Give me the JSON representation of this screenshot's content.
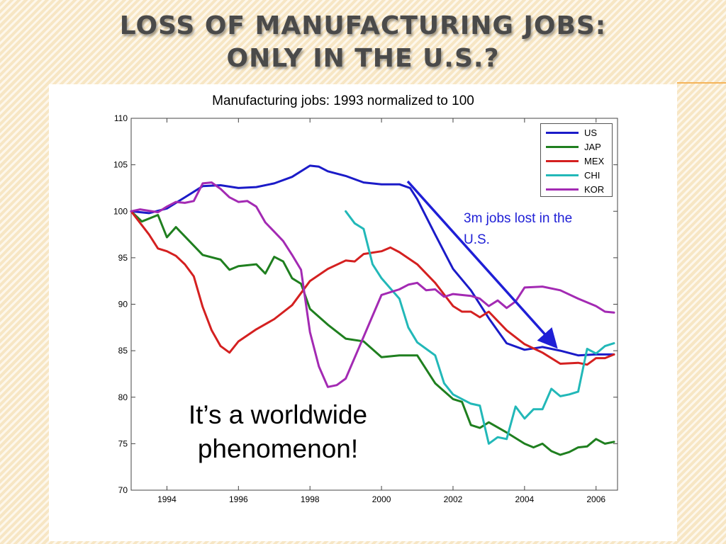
{
  "slide": {
    "title_line1": "LOSS OF MANUFACTURING JOBS:",
    "title_line2": "ONLY IN THE U.S.?",
    "callout": "3m jobs lost in the U.S.",
    "note": "It’s a worldwide phenomenon!"
  },
  "colors": {
    "US": "#1b1bc8",
    "JAP": "#1f7f1f",
    "MEX": "#d42020",
    "CHI": "#22b8b8",
    "KOR": "#a32ab3",
    "arrow": "#1f1fd6"
  },
  "chart_data": {
    "type": "line",
    "title": "Manufacturing jobs: 1993 normalized to 100",
    "xlabel": "",
    "ylabel": "",
    "xlim": [
      1993,
      2006.6
    ],
    "ylim": [
      70,
      110
    ],
    "xticks": [
      1994,
      1996,
      1998,
      2000,
      2002,
      2004,
      2006
    ],
    "yticks": [
      70,
      75,
      80,
      85,
      90,
      95,
      100,
      105,
      110
    ],
    "legend_position": "top-right",
    "grid": false,
    "series": [
      {
        "name": "US",
        "points": [
          [
            1993,
            100
          ],
          [
            1993.5,
            99.8
          ],
          [
            1994,
            100.3
          ],
          [
            1994.5,
            101.5
          ],
          [
            1995,
            102.7
          ],
          [
            1995.5,
            102.8
          ],
          [
            1996,
            102.5
          ],
          [
            1996.5,
            102.6
          ],
          [
            1997,
            103
          ],
          [
            1997.5,
            103.7
          ],
          [
            1998,
            104.9
          ],
          [
            1998.25,
            104.8
          ],
          [
            1998.5,
            104.3
          ],
          [
            1999,
            103.8
          ],
          [
            1999.5,
            103.1
          ],
          [
            2000,
            102.9
          ],
          [
            2000.5,
            102.9
          ],
          [
            2000.8,
            102.5
          ],
          [
            2001,
            101.3
          ],
          [
            2001.5,
            97.5
          ],
          [
            2002,
            93.8
          ],
          [
            2002.5,
            91.5
          ],
          [
            2003,
            88.5
          ],
          [
            2003.5,
            85.8
          ],
          [
            2004,
            85.1
          ],
          [
            2004.5,
            85.4
          ],
          [
            2005,
            85
          ],
          [
            2005.5,
            84.5
          ],
          [
            2006,
            84.6
          ],
          [
            2006.5,
            84.6
          ]
        ]
      },
      {
        "name": "JAP",
        "points": [
          [
            1993,
            100
          ],
          [
            1993.3,
            98.9
          ],
          [
            1993.75,
            99.6
          ],
          [
            1994,
            97.2
          ],
          [
            1994.25,
            98.3
          ],
          [
            1994.5,
            97.3
          ],
          [
            1995,
            95.3
          ],
          [
            1995.5,
            94.8
          ],
          [
            1995.75,
            93.7
          ],
          [
            1996,
            94.1
          ],
          [
            1996.5,
            94.3
          ],
          [
            1996.75,
            93.3
          ],
          [
            1997,
            95.1
          ],
          [
            1997.25,
            94.6
          ],
          [
            1997.5,
            92.8
          ],
          [
            1997.75,
            92.2
          ],
          [
            1998,
            89.5
          ],
          [
            1998.5,
            87.8
          ],
          [
            1999,
            86.3
          ],
          [
            1999.5,
            86
          ],
          [
            2000,
            84.3
          ],
          [
            2000.5,
            84.5
          ],
          [
            2001,
            84.5
          ],
          [
            2001.5,
            81.5
          ],
          [
            2002,
            79.8
          ],
          [
            2002.25,
            79.5
          ],
          [
            2002.5,
            77
          ],
          [
            2002.75,
            76.7
          ],
          [
            2003,
            77.3
          ],
          [
            2003.5,
            76.2
          ],
          [
            2004,
            75
          ],
          [
            2004.25,
            74.6
          ],
          [
            2004.5,
            75
          ],
          [
            2004.75,
            74.2
          ],
          [
            2005,
            73.8
          ],
          [
            2005.25,
            74.1
          ],
          [
            2005.5,
            74.6
          ],
          [
            2005.75,
            74.7
          ],
          [
            2006,
            75.5
          ],
          [
            2006.25,
            75
          ],
          [
            2006.5,
            75.2
          ]
        ]
      },
      {
        "name": "MEX",
        "points": [
          [
            1993,
            100
          ],
          [
            1993.5,
            97.5
          ],
          [
            1993.75,
            96
          ],
          [
            1994,
            95.7
          ],
          [
            1994.25,
            95.2
          ],
          [
            1994.5,
            94.3
          ],
          [
            1994.75,
            93
          ],
          [
            1995,
            89.7
          ],
          [
            1995.25,
            87.2
          ],
          [
            1995.5,
            85.5
          ],
          [
            1995.75,
            84.8
          ],
          [
            1996,
            86
          ],
          [
            1996.5,
            87.3
          ],
          [
            1997,
            88.4
          ],
          [
            1997.5,
            89.9
          ],
          [
            1998,
            92.5
          ],
          [
            1998.5,
            93.8
          ],
          [
            1999,
            94.7
          ],
          [
            1999.25,
            94.6
          ],
          [
            1999.5,
            95.4
          ],
          [
            2000,
            95.7
          ],
          [
            2000.25,
            96.1
          ],
          [
            2000.5,
            95.6
          ],
          [
            2001,
            94.3
          ],
          [
            2001.5,
            92.3
          ],
          [
            2002,
            89.8
          ],
          [
            2002.25,
            89.2
          ],
          [
            2002.5,
            89.2
          ],
          [
            2002.75,
            88.6
          ],
          [
            2003,
            89.2
          ],
          [
            2003.5,
            87.2
          ],
          [
            2004,
            85.7
          ],
          [
            2004.5,
            84.8
          ],
          [
            2005,
            83.6
          ],
          [
            2005.5,
            83.7
          ],
          [
            2005.75,
            83.5
          ],
          [
            2006,
            84.2
          ],
          [
            2006.25,
            84.2
          ],
          [
            2006.5,
            84.6
          ]
        ]
      },
      {
        "name": "CHI",
        "points": [
          [
            1999,
            100
          ],
          [
            1999.25,
            98.7
          ],
          [
            1999.5,
            98.1
          ],
          [
            1999.75,
            94.3
          ],
          [
            2000,
            92.8
          ],
          [
            2000.25,
            91.7
          ],
          [
            2000.5,
            90.6
          ],
          [
            2000.75,
            87.5
          ],
          [
            2001,
            85.9
          ],
          [
            2001.25,
            85.2
          ],
          [
            2001.5,
            84.5
          ],
          [
            2001.75,
            81.5
          ],
          [
            2002,
            80.3
          ],
          [
            2002.25,
            79.8
          ],
          [
            2002.5,
            79.3
          ],
          [
            2002.75,
            79.1
          ],
          [
            2003,
            75
          ],
          [
            2003.25,
            75.7
          ],
          [
            2003.5,
            75.5
          ],
          [
            2003.75,
            79
          ],
          [
            2004,
            77.7
          ],
          [
            2004.25,
            78.7
          ],
          [
            2004.5,
            78.7
          ],
          [
            2004.75,
            80.9
          ],
          [
            2005,
            80.1
          ],
          [
            2005.25,
            80.3
          ],
          [
            2005.5,
            80.6
          ],
          [
            2005.75,
            85.2
          ],
          [
            2006,
            84.7
          ],
          [
            2006.25,
            85.5
          ],
          [
            2006.5,
            85.8
          ]
        ]
      },
      {
        "name": "KOR",
        "points": [
          [
            1993,
            100
          ],
          [
            1993.25,
            100.2
          ],
          [
            1993.75,
            99.9
          ],
          [
            1994,
            100.5
          ],
          [
            1994.25,
            101
          ],
          [
            1994.5,
            100.9
          ],
          [
            1994.75,
            101.1
          ],
          [
            1995,
            103
          ],
          [
            1995.25,
            103.1
          ],
          [
            1995.5,
            102.4
          ],
          [
            1995.75,
            101.5
          ],
          [
            1996,
            101
          ],
          [
            1996.25,
            101.1
          ],
          [
            1996.5,
            100.5
          ],
          [
            1996.75,
            98.8
          ],
          [
            1997,
            97.8
          ],
          [
            1997.25,
            96.8
          ],
          [
            1997.5,
            95.3
          ],
          [
            1997.75,
            93.7
          ],
          [
            1998,
            87
          ],
          [
            1998.25,
            83.3
          ],
          [
            1998.5,
            81.1
          ],
          [
            1998.75,
            81.3
          ],
          [
            1999,
            82
          ],
          [
            1999.5,
            86.5
          ],
          [
            2000,
            91
          ],
          [
            2000.5,
            91.6
          ],
          [
            2000.75,
            92.1
          ],
          [
            2001,
            92.3
          ],
          [
            2001.25,
            91.5
          ],
          [
            2001.5,
            91.6
          ],
          [
            2001.75,
            90.8
          ],
          [
            2002,
            91.1
          ],
          [
            2002.5,
            90.9
          ],
          [
            2002.75,
            90.6
          ],
          [
            2003,
            89.8
          ],
          [
            2003.25,
            90.4
          ],
          [
            2003.5,
            89.6
          ],
          [
            2003.75,
            90.3
          ],
          [
            2004,
            91.8
          ],
          [
            2004.5,
            91.9
          ],
          [
            2005,
            91.5
          ],
          [
            2005.5,
            90.6
          ],
          [
            2006,
            89.8
          ],
          [
            2006.25,
            89.2
          ],
          [
            2006.5,
            89.1
          ]
        ]
      }
    ]
  }
}
